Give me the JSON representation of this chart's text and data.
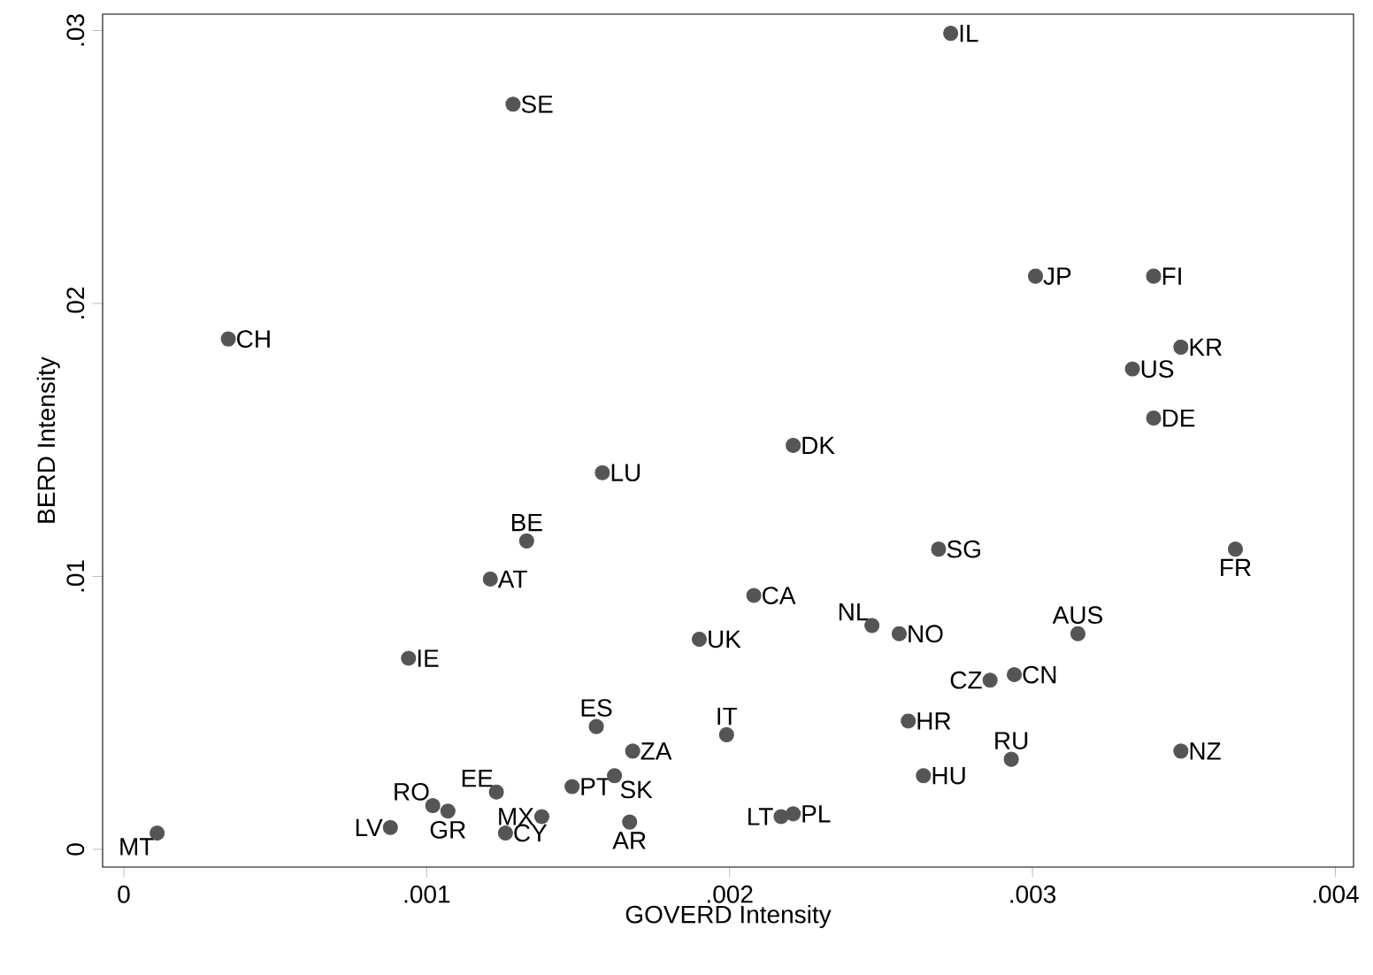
{
  "chart_data": {
    "type": "scatter",
    "xlabel": "GOVERD Intensity",
    "ylabel": "BERD Intensity",
    "color": "#555555",
    "marker": "circle",
    "xlim": [
      -7e-05,
      0.00406
    ],
    "ylim": [
      -0.00065,
      0.0306
    ],
    "xticks": [
      0,
      {
        "value": 0.001,
        "label": ".001"
      },
      {
        "value": 0.002,
        "label": ".002"
      },
      {
        "value": 0.003,
        "label": ".003"
      },
      {
        "value": 0.004,
        "label": ".004"
      }
    ],
    "yticks": [
      0,
      {
        "value": 0.01,
        "label": ".01"
      },
      {
        "value": 0.02,
        "label": ".02"
      },
      {
        "value": 0.03,
        "label": ".03"
      }
    ],
    "annotations": [
      {
        "text": "IL",
        "x": 0.00273,
        "y": 0.0299
      },
      {
        "text": "SE",
        "x": 0.001285,
        "y": 0.0273
      },
      {
        "text": "JP",
        "x": 0.00301,
        "y": 0.021
      },
      {
        "text": "FI",
        "x": 0.0034,
        "y": 0.021
      },
      {
        "text": "CH",
        "x": 0.000345,
        "y": 0.0187
      },
      {
        "text": "KR",
        "x": 0.00349,
        "y": 0.0184
      },
      {
        "text": "US",
        "x": 0.00333,
        "y": 0.0176
      },
      {
        "text": "DE",
        "x": 0.0034,
        "y": 0.0158
      },
      {
        "text": "DK",
        "x": 0.00221,
        "y": 0.0148
      },
      {
        "text": "LU",
        "x": 0.00158,
        "y": 0.0138
      },
      {
        "text": "BE",
        "x": 0.00133,
        "y": 0.0113
      },
      {
        "text": "FR",
        "x": 0.00367,
        "y": 0.011
      },
      {
        "text": "SG",
        "x": 0.00269,
        "y": 0.011
      },
      {
        "text": "AT",
        "x": 0.00121,
        "y": 0.0099
      },
      {
        "text": "CA",
        "x": 0.00208,
        "y": 0.0093
      },
      {
        "text": "NL",
        "x": 0.00247,
        "y": 0.0082
      },
      {
        "text": "NO",
        "x": 0.00256,
        "y": 0.0079
      },
      {
        "text": "AUS",
        "x": 0.00315,
        "y": 0.0079
      },
      {
        "text": "UK",
        "x": 0.0019,
        "y": 0.0077
      },
      {
        "text": "IE",
        "x": 0.00094,
        "y": 0.007
      },
      {
        "text": "CN",
        "x": 0.00294,
        "y": 0.0064
      },
      {
        "text": "CZ",
        "x": 0.00286,
        "y": 0.0062
      },
      {
        "text": "HR",
        "x": 0.00259,
        "y": 0.0047
      },
      {
        "text": "ES",
        "x": 0.00156,
        "y": 0.0045
      },
      {
        "text": "IT",
        "x": 0.00199,
        "y": 0.0042
      },
      {
        "text": "NZ",
        "x": 0.00349,
        "y": 0.0036
      },
      {
        "text": "ZA",
        "x": 0.00168,
        "y": 0.0036
      },
      {
        "text": "RU",
        "x": 0.00293,
        "y": 0.0033
      },
      {
        "text": "SK",
        "x": 0.00162,
        "y": 0.0027
      },
      {
        "text": "HU",
        "x": 0.00264,
        "y": 0.0027
      },
      {
        "text": "PT",
        "x": 0.00148,
        "y": 0.0023
      },
      {
        "text": "EE",
        "x": 0.00123,
        "y": 0.0021
      },
      {
        "text": "RO",
        "x": 0.00102,
        "y": 0.0016
      },
      {
        "text": "GR",
        "x": 0.00107,
        "y": 0.0014
      },
      {
        "text": "MX",
        "x": 0.00138,
        "y": 0.0012
      },
      {
        "text": "PL",
        "x": 0.00221,
        "y": 0.0013
      },
      {
        "text": "LT",
        "x": 0.00217,
        "y": 0.0012
      },
      {
        "text": "AR",
        "x": 0.00167,
        "y": 0.001
      },
      {
        "text": "LV",
        "x": 0.00088,
        "y": 0.0008
      },
      {
        "text": "CY",
        "x": 0.00126,
        "y": 0.0006
      },
      {
        "text": "MT",
        "x": 0.00011,
        "y": 0.0006
      }
    ]
  }
}
